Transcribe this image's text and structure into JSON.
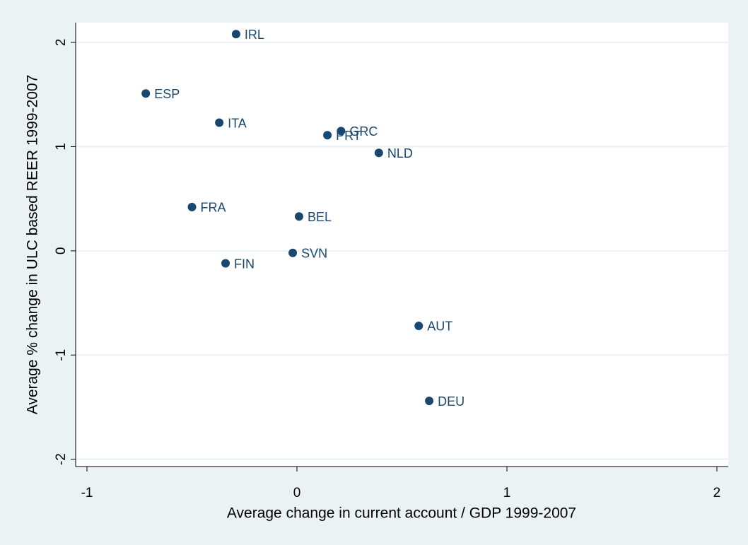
{
  "chart_data": {
    "type": "scatter",
    "xlabel": "Average change in current account / GDP 1999-2007",
    "ylabel": "Average % change in ULC based REER  1999-2007",
    "labels": [
      "IRL",
      "ESP",
      "ITA",
      "PRT",
      "GRC",
      "NLD",
      "FRA",
      "BEL",
      "SVN",
      "FIN",
      "AUT",
      "DEU"
    ],
    "x": [
      -0.29,
      -0.72,
      -0.37,
      0.145,
      0.21,
      0.39,
      -0.5,
      0.01,
      -0.02,
      -0.34,
      0.58,
      0.63
    ],
    "y": [
      2.08,
      1.51,
      1.23,
      1.11,
      1.15,
      0.94,
      0.42,
      0.33,
      -0.02,
      -0.12,
      -0.72,
      -1.44
    ],
    "color": "#1a476f",
    "xlim": [
      -1.054,
      2.054
    ],
    "xticks": [
      -1,
      0,
      1,
      2
    ],
    "ylim": [
      -2.07,
      2.19
    ],
    "yticks": [
      -2,
      -1,
      0,
      1,
      2
    ],
    "grid": true
  }
}
